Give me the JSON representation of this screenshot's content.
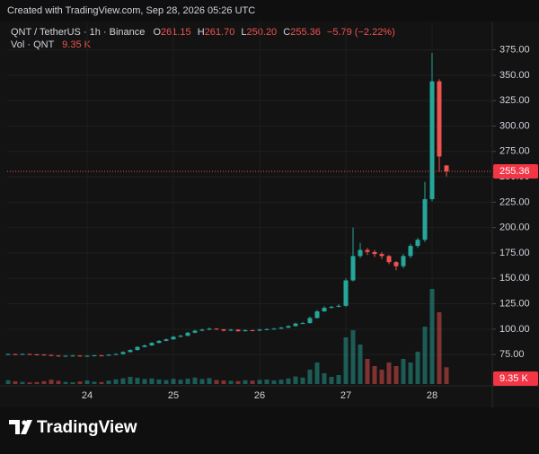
{
  "header": {
    "credit": "Created with TradingView.com, Sep 28, 2026 05:26 UTC",
    "brand": "TradingView"
  },
  "chart_data": {
    "type": "candlestick",
    "symbol": "QNT / TetherUS · 1h · Binance",
    "ohlc_keys": [
      "O",
      "H",
      "L",
      "C"
    ],
    "last_labels": {
      "open": "261.15",
      "high": "261.70",
      "low": "250.20",
      "close": "255.36"
    },
    "change": "−5.79 (−2.22%)",
    "up_color": "#26a69a",
    "down_color": "#ef5350",
    "x": [
      23.0833,
      23.1667,
      23.25,
      23.3333,
      23.4167,
      23.5,
      23.5833,
      23.6667,
      23.75,
      23.8333,
      23.9167,
      24.0,
      24.0833,
      24.1667,
      24.25,
      24.3333,
      24.4167,
      24.5,
      24.5833,
      24.6667,
      24.75,
      24.8333,
      24.9167,
      25.0,
      25.0833,
      25.1667,
      25.25,
      25.3333,
      25.4167,
      25.5,
      25.5833,
      25.6667,
      25.75,
      25.8333,
      25.9167,
      26.0,
      26.0833,
      26.1667,
      26.25,
      26.3333,
      26.4167,
      26.5,
      26.5833,
      26.6667,
      26.75,
      26.8333,
      26.9167,
      27.0,
      27.0833,
      27.1667,
      27.25,
      27.3333,
      27.4167,
      27.5,
      27.5833,
      27.6667,
      27.75,
      27.8333,
      27.9167,
      28.0,
      28.0833,
      28.1667
    ],
    "open": [
      75.4,
      75.5,
      75.3,
      75.6,
      75.2,
      75.0,
      74.6,
      74.0,
      73.6,
      73.8,
      74.0,
      73.5,
      73.8,
      74.2,
      74.0,
      74.8,
      75.5,
      77.5,
      79.5,
      82.5,
      84.0,
      86.5,
      88.5,
      90.0,
      92.5,
      93.5,
      96.5,
      98.5,
      99.5,
      100.5,
      99.8,
      98.5,
      99.5,
      98.0,
      99.0,
      98.5,
      99.5,
      100.0,
      100.5,
      101.5,
      103.0,
      105.5,
      106.0,
      111.0,
      117.5,
      121.0,
      122.0,
      123.0,
      148.0,
      172.0,
      178.0,
      176.0,
      174.0,
      172.0,
      166.0,
      162.0,
      172.0,
      182.0,
      188.0,
      228.0,
      344.0,
      261.15
    ],
    "high": [
      76.0,
      76.0,
      76.1,
      75.9,
      75.6,
      75.3,
      74.9,
      74.4,
      74.3,
      74.6,
      74.3,
      74.3,
      74.8,
      74.6,
      75.3,
      76.2,
      78.2,
      80.3,
      83.2,
      84.9,
      87.2,
      89.3,
      90.8,
      93.4,
      94.5,
      97.3,
      99.3,
      100.4,
      101.5,
      101.0,
      100.2,
      100.3,
      100.0,
      99.8,
      99.5,
      100.3,
      100.8,
      101.3,
      102.3,
      103.8,
      106.4,
      107.2,
      112.5,
      119.0,
      122.5,
      123.0,
      124.5,
      150.0,
      200.0,
      185.0,
      180.0,
      178.0,
      176.0,
      173.0,
      167.0,
      174.0,
      184.0,
      190.0,
      245.0,
      372.0,
      346.0,
      261.7
    ],
    "low": [
      75.0,
      74.9,
      75.0,
      74.8,
      74.5,
      74.1,
      73.6,
      73.1,
      73.2,
      73.4,
      73.0,
      73.2,
      73.4,
      73.5,
      73.7,
      74.5,
      75.0,
      77.0,
      79.0,
      82.0,
      83.5,
      86.0,
      88.0,
      89.5,
      92.0,
      93.0,
      96.0,
      98.0,
      99.0,
      99.2,
      97.8,
      98.0,
      97.4,
      97.6,
      97.9,
      98.0,
      99.4,
      99.8,
      100.0,
      101.0,
      102.5,
      105.0,
      105.5,
      110.5,
      117.0,
      120.5,
      121.5,
      122.0,
      147.0,
      170.0,
      173.0,
      171.0,
      169.0,
      164.0,
      158.0,
      160.0,
      170.0,
      180.0,
      186.0,
      226.0,
      255.0,
      250.2
    ],
    "close": [
      75.5,
      75.3,
      75.6,
      75.2,
      75.0,
      74.6,
      74.0,
      73.6,
      73.8,
      74.0,
      73.5,
      73.8,
      74.2,
      74.0,
      74.8,
      75.5,
      77.5,
      79.5,
      82.5,
      84.0,
      86.5,
      88.5,
      90.0,
      92.5,
      93.5,
      96.5,
      98.5,
      99.5,
      100.5,
      99.8,
      98.5,
      99.5,
      98.0,
      99.0,
      98.5,
      99.5,
      100.0,
      100.5,
      101.5,
      103.0,
      105.5,
      106.0,
      111.0,
      117.5,
      121.0,
      122.0,
      123.0,
      148.0,
      172.0,
      178.0,
      176.0,
      174.0,
      172.0,
      166.0,
      162.0,
      172.0,
      182.0,
      188.0,
      228.0,
      344.0,
      270.0,
      255.36
    ],
    "volume": {
      "name": "Vol · QNT",
      "last_label": "9.35 K",
      "ylim": [
        0,
        60
      ],
      "values": [
        2.1,
        1.5,
        1.2,
        0.9,
        1.1,
        1.6,
        2.4,
        1.8,
        1.2,
        1.0,
        1.4,
        2.0,
        1.3,
        1.1,
        1.9,
        2.6,
        3.2,
        4.0,
        3.5,
        2.8,
        3.1,
        2.5,
        2.2,
        2.9,
        2.4,
        3.0,
        3.6,
        2.8,
        3.3,
        2.2,
        2.0,
        1.8,
        1.6,
        2.1,
        1.9,
        2.3,
        2.5,
        2.0,
        2.4,
        3.1,
        4.2,
        3.6,
        8.0,
        12.0,
        6.0,
        4.0,
        5.0,
        26.0,
        30.0,
        22.0,
        14.0,
        10.0,
        8.0,
        12.0,
        10.0,
        14.0,
        12.0,
        18.0,
        32.0,
        53.0,
        40.0,
        9.35
      ]
    },
    "xlim": [
      23.073,
      28.698
    ],
    "xticks": [
      24,
      25,
      26,
      27,
      28
    ],
    "ylim": [
      46,
      402
    ],
    "yticks": [
      {
        "value": 75,
        "label": "75.00"
      },
      {
        "value": 100,
        "label": "100.00"
      },
      {
        "value": 125,
        "label": "125.00"
      },
      {
        "value": 150,
        "label": "150.00"
      },
      {
        "value": 175,
        "label": "175.00"
      },
      {
        "value": 200,
        "label": "200.00"
      },
      {
        "value": 225,
        "label": "225.00"
      },
      {
        "value": 250,
        "label": "250.00"
      },
      {
        "value": 275,
        "label": "275.00"
      },
      {
        "value": 300,
        "label": "300.00"
      },
      {
        "value": 325,
        "label": "325.00"
      },
      {
        "value": 350,
        "label": "350.00"
      },
      {
        "value": 375,
        "label": "375.00"
      }
    ],
    "grid": true
  }
}
